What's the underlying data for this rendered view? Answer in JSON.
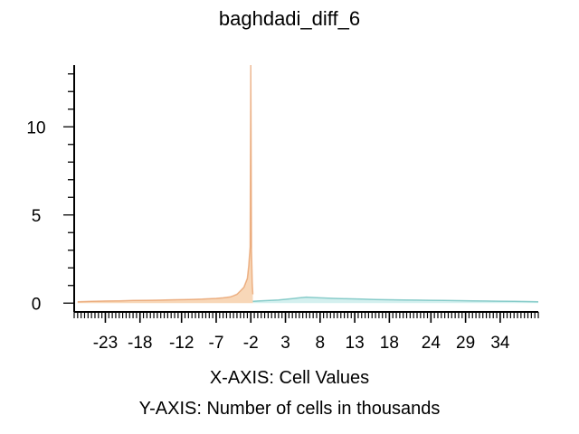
{
  "chart_data": {
    "type": "area",
    "title": "baghdadi_diff_6",
    "xlabel": "X-AXIS: Cell Values",
    "ylabel": "Y-AXIS: Number of cells in thousands",
    "xlim": [
      -27.5,
      39.5
    ],
    "ylim": [
      -0.5,
      13.5
    ],
    "x_ticks": [
      -23,
      -18,
      -12,
      -7,
      -2,
      3,
      8,
      13,
      18,
      24,
      29,
      34
    ],
    "y_ticks": [
      0,
      5,
      10
    ],
    "colors": {
      "negative_fill": "#f6c9a0",
      "negative_edge": "#e0823e",
      "positive_fill": "#cfeeed",
      "positive_edge": "#3aa9a5",
      "peak_fill": "#fde7d3"
    },
    "series": [
      {
        "x": [
          -27,
          -25,
          -23,
          -21,
          -19,
          -17,
          -15,
          -13,
          -11,
          -9,
          -7,
          -6,
          -5,
          -4.5,
          -4,
          -3.5,
          -3,
          -2.5,
          -2.3,
          -2.1,
          -2.0,
          -1.9,
          -1.8,
          -1.7
        ],
        "values": [
          0.08,
          0.1,
          0.12,
          0.13,
          0.15,
          0.16,
          0.17,
          0.19,
          0.21,
          0.23,
          0.27,
          0.3,
          0.35,
          0.42,
          0.5,
          0.7,
          0.9,
          1.4,
          2.1,
          3.2,
          13.5,
          3.0,
          1.2,
          0.5
        ]
      },
      {
        "x": [
          -1.7,
          -1,
          0,
          1,
          2,
          3,
          4,
          5,
          6,
          7,
          8,
          10,
          12,
          14,
          16,
          18,
          20,
          22,
          24,
          26,
          28,
          30,
          32,
          34,
          36,
          38,
          39.5
        ],
        "values": [
          0.1,
          0.12,
          0.14,
          0.16,
          0.18,
          0.22,
          0.26,
          0.3,
          0.34,
          0.32,
          0.3,
          0.27,
          0.25,
          0.23,
          0.21,
          0.19,
          0.18,
          0.17,
          0.16,
          0.15,
          0.14,
          0.13,
          0.12,
          0.11,
          0.1,
          0.09,
          0.08
        ]
      }
    ]
  }
}
